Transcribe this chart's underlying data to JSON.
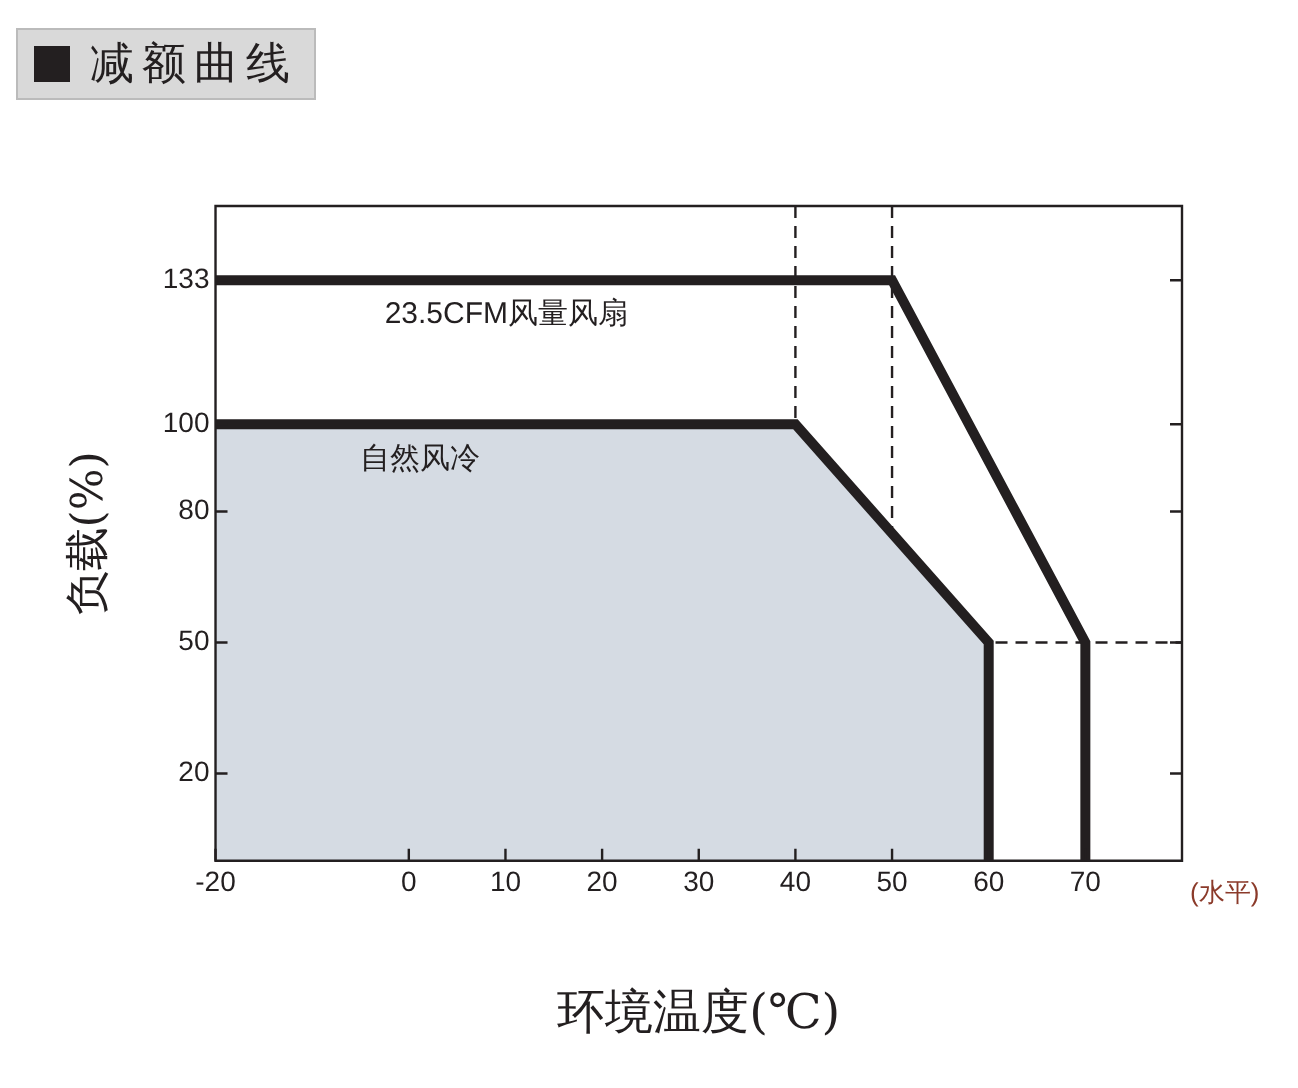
{
  "chart_data": {
    "type": "line",
    "title": "减额曲线",
    "xlabel": "环境温度(℃)",
    "ylabel": "负载(%)",
    "annotations": [
      "(水平)"
    ],
    "series": [
      {
        "name": "23.5CFM风量风扇",
        "color": "#231f20",
        "x": [
          -20,
          50,
          70,
          70
        ],
        "values": [
          133,
          133,
          50,
          0
        ]
      },
      {
        "name": "自然风冷",
        "type": "area",
        "color": "#d5dbe3",
        "x": [
          -20,
          40,
          60,
          60
        ],
        "values": [
          100,
          100,
          50,
          0
        ]
      }
    ],
    "xlim": [
      -20,
      80
    ],
    "xticks": [
      -20,
      0,
      10,
      20,
      30,
      40,
      50,
      60,
      70
    ],
    "ylim": [
      0,
      150
    ],
    "yticks": [
      20,
      50,
      80,
      100,
      133
    ],
    "ref_lines": [
      {
        "axis": "x",
        "value": 40,
        "line_style": "dashed"
      },
      {
        "axis": "x",
        "value": 50,
        "line_style": "dashed"
      },
      {
        "axis": "y",
        "value": 50,
        "line_style": "dashed"
      }
    ],
    "grid": false,
    "legend": false,
    "marker": "none"
  }
}
